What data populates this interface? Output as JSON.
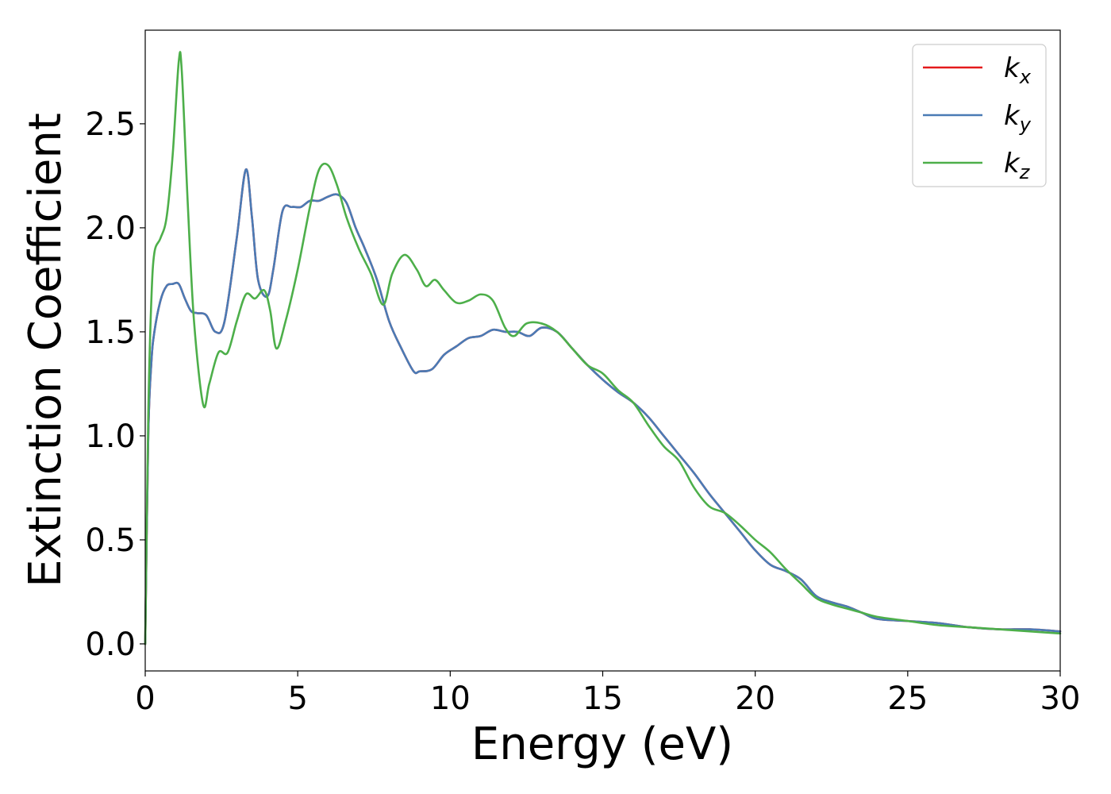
{
  "chart_data": {
    "type": "line",
    "title": "",
    "xlabel": "Energy (eV)",
    "ylabel": "Extinction Coefficient",
    "xlim": [
      0,
      30
    ],
    "ylim": [
      -0.13,
      2.95
    ],
    "xticks": [
      0,
      5,
      10,
      15,
      20,
      25,
      30
    ],
    "xtick_labels": [
      "0",
      "5",
      "10",
      "15",
      "20",
      "25",
      "30"
    ],
    "yticks": [
      0.0,
      0.5,
      1.0,
      1.5,
      2.0,
      2.5
    ],
    "ytick_labels": [
      "0.0",
      "0.5",
      "1.0",
      "1.5",
      "2.0",
      "2.5"
    ],
    "grid": false,
    "legend_position": "top-right",
    "series": [
      {
        "name": "kx",
        "legend_base": "k",
        "legend_sub": "x",
        "color": "#e41a1c",
        "x": [
          0,
          0.1,
          0.2,
          0.3,
          0.5,
          0.7,
          0.9,
          1.1,
          1.3,
          1.5,
          1.7,
          2.0,
          2.3,
          2.6,
          3.0,
          3.3,
          3.5,
          3.7,
          4.0,
          4.2,
          4.5,
          4.8,
          5.1,
          5.4,
          5.7,
          6.0,
          6.3,
          6.6,
          6.9,
          7.2,
          7.6,
          8.0,
          8.4,
          8.8,
          9.0,
          9.4,
          9.8,
          10.2,
          10.6,
          11.0,
          11.4,
          11.8,
          12.2,
          12.6,
          13.0,
          13.5,
          14.0,
          14.5,
          15.0,
          15.5,
          16.0,
          16.5,
          17.0,
          17.5,
          18.0,
          18.5,
          19.0,
          19.5,
          20.0,
          20.5,
          21.0,
          21.5,
          22.0,
          22.5,
          23.0,
          23.5,
          24.0,
          25.0,
          26.0,
          27.0,
          28.0,
          29.0,
          30.0
        ],
        "values": [
          0.0,
          1.0,
          1.35,
          1.5,
          1.65,
          1.72,
          1.73,
          1.73,
          1.66,
          1.6,
          1.59,
          1.58,
          1.5,
          1.55,
          1.95,
          2.28,
          2.05,
          1.75,
          1.67,
          1.8,
          2.08,
          2.1,
          2.1,
          2.13,
          2.13,
          2.15,
          2.16,
          2.12,
          2.0,
          1.9,
          1.75,
          1.55,
          1.42,
          1.31,
          1.31,
          1.32,
          1.39,
          1.43,
          1.47,
          1.48,
          1.51,
          1.5,
          1.5,
          1.48,
          1.52,
          1.5,
          1.42,
          1.34,
          1.27,
          1.21,
          1.16,
          1.09,
          1.0,
          0.91,
          0.82,
          0.72,
          0.63,
          0.54,
          0.45,
          0.38,
          0.35,
          0.31,
          0.23,
          0.2,
          0.18,
          0.15,
          0.12,
          0.11,
          0.1,
          0.08,
          0.07,
          0.07,
          0.06
        ]
      },
      {
        "name": "ky",
        "legend_base": "k",
        "legend_sub": "y",
        "color": "#4a7bb5",
        "x": [
          0,
          0.1,
          0.2,
          0.3,
          0.5,
          0.7,
          0.9,
          1.1,
          1.3,
          1.5,
          1.7,
          2.0,
          2.3,
          2.6,
          3.0,
          3.3,
          3.5,
          3.7,
          4.0,
          4.2,
          4.5,
          4.8,
          5.1,
          5.4,
          5.7,
          6.0,
          6.3,
          6.6,
          6.9,
          7.2,
          7.6,
          8.0,
          8.4,
          8.8,
          9.0,
          9.4,
          9.8,
          10.2,
          10.6,
          11.0,
          11.4,
          11.8,
          12.2,
          12.6,
          13.0,
          13.5,
          14.0,
          14.5,
          15.0,
          15.5,
          16.0,
          16.5,
          17.0,
          17.5,
          18.0,
          18.5,
          19.0,
          19.5,
          20.0,
          20.5,
          21.0,
          21.5,
          22.0,
          22.5,
          23.0,
          23.5,
          24.0,
          25.0,
          26.0,
          27.0,
          28.0,
          29.0,
          30.0
        ],
        "values": [
          0.0,
          1.0,
          1.35,
          1.5,
          1.65,
          1.72,
          1.73,
          1.73,
          1.66,
          1.6,
          1.59,
          1.58,
          1.5,
          1.55,
          1.95,
          2.28,
          2.05,
          1.75,
          1.67,
          1.8,
          2.08,
          2.1,
          2.1,
          2.13,
          2.13,
          2.15,
          2.16,
          2.12,
          2.0,
          1.9,
          1.75,
          1.55,
          1.42,
          1.31,
          1.31,
          1.32,
          1.39,
          1.43,
          1.47,
          1.48,
          1.51,
          1.5,
          1.5,
          1.48,
          1.52,
          1.5,
          1.42,
          1.34,
          1.27,
          1.21,
          1.16,
          1.09,
          1.0,
          0.91,
          0.82,
          0.72,
          0.63,
          0.54,
          0.45,
          0.38,
          0.35,
          0.31,
          0.23,
          0.2,
          0.18,
          0.15,
          0.12,
          0.11,
          0.1,
          0.08,
          0.07,
          0.07,
          0.06
        ]
      },
      {
        "name": "kz",
        "legend_base": "k",
        "legend_sub": "z",
        "color": "#4daf4a",
        "x": [
          0,
          0.1,
          0.2,
          0.3,
          0.5,
          0.7,
          0.9,
          1.1,
          1.2,
          1.4,
          1.6,
          1.9,
          2.1,
          2.4,
          2.7,
          3.0,
          3.3,
          3.6,
          3.9,
          4.1,
          4.3,
          4.6,
          5.0,
          5.4,
          5.7,
          6.0,
          6.3,
          6.6,
          7.0,
          7.4,
          7.8,
          8.1,
          8.5,
          8.9,
          9.2,
          9.5,
          9.8,
          10.2,
          10.6,
          11.0,
          11.4,
          11.8,
          12.1,
          12.5,
          13.0,
          13.5,
          14.0,
          14.5,
          15.0,
          15.5,
          16.0,
          16.5,
          17.0,
          17.5,
          18.0,
          18.5,
          19.0,
          19.5,
          20.0,
          20.5,
          21.0,
          21.5,
          22.0,
          22.5,
          23.0,
          23.5,
          24.0,
          25.0,
          26.0,
          27.0,
          28.0,
          29.0,
          30.0
        ],
        "values": [
          0.0,
          1.1,
          1.65,
          1.88,
          1.95,
          2.05,
          2.35,
          2.8,
          2.75,
          2.1,
          1.55,
          1.15,
          1.25,
          1.4,
          1.4,
          1.55,
          1.68,
          1.66,
          1.7,
          1.6,
          1.42,
          1.55,
          1.8,
          2.1,
          2.28,
          2.3,
          2.2,
          2.05,
          1.9,
          1.78,
          1.63,
          1.78,
          1.87,
          1.8,
          1.72,
          1.75,
          1.7,
          1.64,
          1.65,
          1.68,
          1.65,
          1.52,
          1.48,
          1.54,
          1.54,
          1.5,
          1.42,
          1.34,
          1.3,
          1.22,
          1.16,
          1.05,
          0.95,
          0.88,
          0.75,
          0.66,
          0.63,
          0.57,
          0.5,
          0.44,
          0.36,
          0.29,
          0.22,
          0.19,
          0.17,
          0.15,
          0.13,
          0.11,
          0.09,
          0.08,
          0.07,
          0.06,
          0.05
        ]
      }
    ]
  }
}
